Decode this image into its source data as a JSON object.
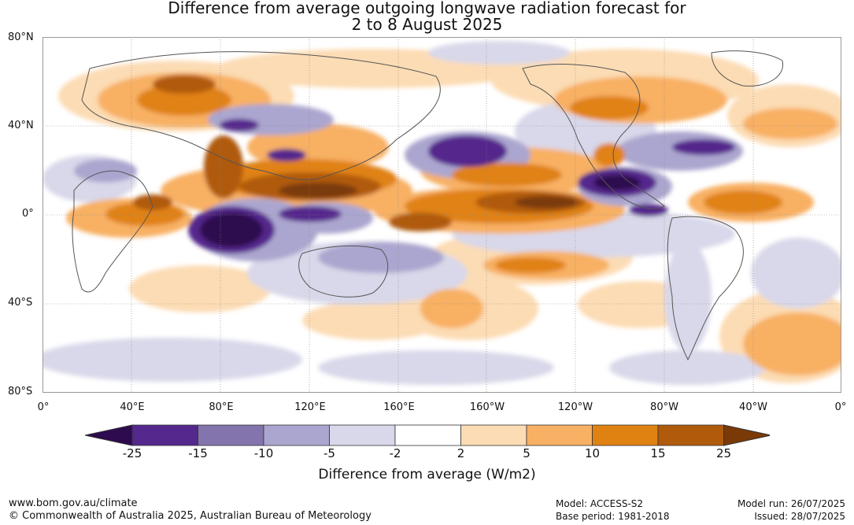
{
  "title": {
    "line1": "Difference from average outgoing longwave radiation forecast for",
    "line2": "2 to 8 August 2025"
  },
  "map": {
    "lat_labels": [
      "80°N",
      "40°N",
      "0°",
      "40°S",
      "80°S"
    ],
    "lon_labels": [
      "0°",
      "40°E",
      "80°E",
      "120°E",
      "160°E",
      "160°W",
      "120°W",
      "80°W",
      "40°W",
      "0°"
    ],
    "lon_range": [
      0,
      360
    ],
    "lat_range": [
      -80,
      80
    ],
    "gridlines": true
  },
  "colorbar": {
    "labels": [
      "-25",
      "-15",
      "-10",
      "-5",
      "-2",
      "2",
      "5",
      "10",
      "15",
      "25"
    ],
    "colors": [
      "#2e0a4f",
      "#54288c",
      "#8474ad",
      "#aba6cf",
      "#d8d8ea",
      "#ffffff",
      "#fcdcb4",
      "#f8b064",
      "#e08212",
      "#b05a0c",
      "#7a3a08"
    ],
    "title": "Difference from average (W/m2)"
  },
  "footer": {
    "url": "www.bom.gov.au/climate",
    "copyright": "© Commonwealth of Australia 2025, Australian Bureau of Meteorology",
    "model": "Model: ACCESS-S2",
    "base_period": "Base period: 1981-2018",
    "model_run": "Model run: 26/07/2025",
    "issued": "Issued: 28/07/2025"
  }
}
